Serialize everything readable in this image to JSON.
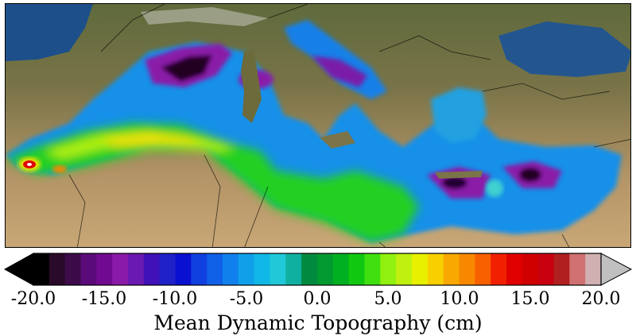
{
  "map": {
    "region": "Mediterranean Sea",
    "basemap": "satellite imagery",
    "overlay_variable": "Mean Dynamic Topography",
    "features": [
      "sea-surface-field",
      "country-borders",
      "coastlines"
    ]
  },
  "colorbar": {
    "label": "Mean Dynamic Topography (cm)",
    "min": -20.0,
    "max": 20.0,
    "extend": "both",
    "ticks": [
      {
        "value": -20.0,
        "text": "-20.0"
      },
      {
        "value": -15.0,
        "text": "-15.0"
      },
      {
        "value": -10.0,
        "text": "-10.0"
      },
      {
        "value": -5.0,
        "text": "-5.0"
      },
      {
        "value": 0.0,
        "text": "0.0"
      },
      {
        "value": 5.0,
        "text": "5.0"
      },
      {
        "value": 10.0,
        "text": "10.0"
      },
      {
        "value": 15.0,
        "text": "15.0"
      },
      {
        "value": 20.0,
        "text": "20.0"
      }
    ],
    "colors": [
      "#000000",
      "#2a0a2a",
      "#3d0a4a",
      "#5b0a7a",
      "#700a90",
      "#8a1aa8",
      "#6a1ab0",
      "#4010b8",
      "#2020c8",
      "#0a10d0",
      "#1040e0",
      "#1060e8",
      "#1080ec",
      "#10a0ea",
      "#10b8e8",
      "#20c8d8",
      "#10b0a0",
      "#008a40",
      "#009a30",
      "#00b020",
      "#10c810",
      "#40e010",
      "#90f010",
      "#c0f010",
      "#e8f000",
      "#f8d000",
      "#f8a800",
      "#f88800",
      "#f86000",
      "#f02000",
      "#e00000",
      "#d00000",
      "#c80010",
      "#b02020",
      "#d07070",
      "#d0b0b0"
    ],
    "extend_min_color": "#000000",
    "extend_max_color": "#c0c0c0"
  }
}
